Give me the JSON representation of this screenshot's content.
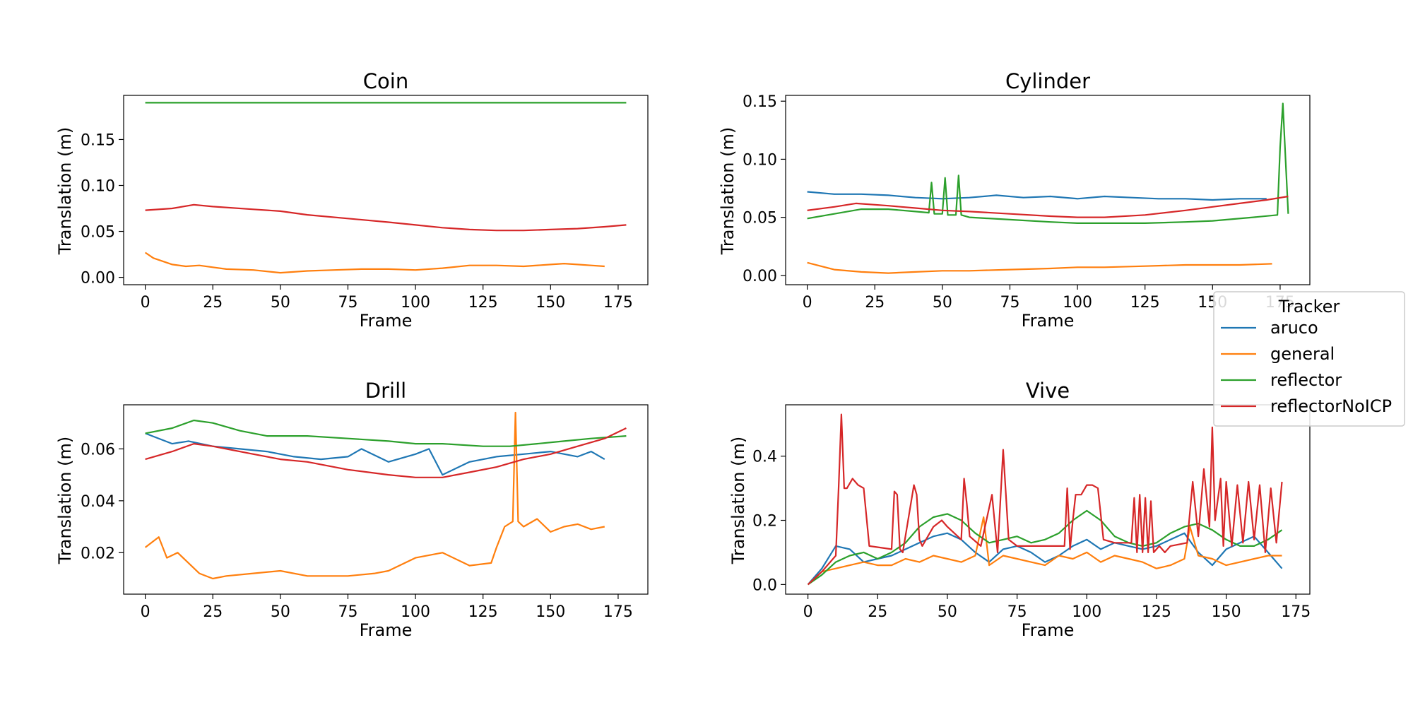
{
  "legend": {
    "title": "Tracker",
    "position": "right, between rows"
  },
  "chart_data": [
    {
      "type": "line",
      "title": "Coin",
      "xlabel": "Frame",
      "ylabel": "Translation (m)",
      "xlim": [
        -8,
        186
      ],
      "ylim": [
        -0.008,
        0.198
      ],
      "xticks": [
        0,
        25,
        50,
        75,
        100,
        125,
        150,
        175
      ],
      "yticks": [
        0.0,
        0.05,
        0.1,
        0.15
      ],
      "ytick_labels": [
        "0.00",
        "0.05",
        "0.10",
        "0.15"
      ],
      "grid": false,
      "series": [
        {
          "name": "aruco",
          "color": "#1f77b4",
          "x": [],
          "y": []
        },
        {
          "name": "general",
          "color": "#ff7f0e",
          "x": [
            0,
            3,
            6,
            10,
            15,
            20,
            25,
            30,
            40,
            50,
            60,
            70,
            80,
            90,
            100,
            110,
            120,
            130,
            140,
            150,
            155,
            160,
            165,
            170
          ],
          "y": [
            0.027,
            0.021,
            0.018,
            0.014,
            0.012,
            0.013,
            0.011,
            0.009,
            0.008,
            0.005,
            0.007,
            0.008,
            0.009,
            0.009,
            0.008,
            0.01,
            0.013,
            0.013,
            0.012,
            0.014,
            0.015,
            0.014,
            0.013,
            0.012
          ]
        },
        {
          "name": "reflector",
          "color": "#2ca02c",
          "x": [
            0,
            178
          ],
          "y": [
            0.19,
            0.19
          ]
        },
        {
          "name": "reflectorNoICP",
          "color": "#d62728",
          "x": [
            0,
            10,
            18,
            25,
            40,
            50,
            60,
            75,
            90,
            100,
            110,
            120,
            130,
            140,
            150,
            160,
            170,
            178
          ],
          "y": [
            0.073,
            0.075,
            0.079,
            0.077,
            0.074,
            0.072,
            0.068,
            0.064,
            0.06,
            0.057,
            0.054,
            0.052,
            0.051,
            0.051,
            0.052,
            0.053,
            0.055,
            0.057
          ]
        }
      ]
    },
    {
      "type": "line",
      "title": "Cylinder",
      "xlabel": "Frame",
      "ylabel": "Translation (m)",
      "xlim": [
        -8,
        186
      ],
      "ylim": [
        -0.008,
        0.155
      ],
      "xticks": [
        0,
        25,
        50,
        75,
        100,
        125,
        150,
        175
      ],
      "yticks": [
        0.0,
        0.05,
        0.1,
        0.15
      ],
      "ytick_labels": [
        "0.00",
        "0.05",
        "0.10",
        "0.15"
      ],
      "grid": false,
      "series": [
        {
          "name": "aruco",
          "color": "#1f77b4",
          "x": [
            0,
            10,
            20,
            30,
            40,
            50,
            60,
            70,
            80,
            90,
            100,
            110,
            120,
            130,
            140,
            150,
            160,
            170
          ],
          "y": [
            0.072,
            0.07,
            0.07,
            0.069,
            0.067,
            0.066,
            0.067,
            0.069,
            0.067,
            0.068,
            0.066,
            0.068,
            0.067,
            0.066,
            0.066,
            0.065,
            0.066,
            0.066
          ]
        },
        {
          "name": "general",
          "color": "#ff7f0e",
          "x": [
            0,
            5,
            10,
            20,
            30,
            40,
            50,
            60,
            75,
            90,
            100,
            110,
            125,
            140,
            150,
            160,
            172
          ],
          "y": [
            0.011,
            0.008,
            0.005,
            0.003,
            0.002,
            0.003,
            0.004,
            0.004,
            0.005,
            0.006,
            0.007,
            0.007,
            0.008,
            0.009,
            0.009,
            0.009,
            0.01
          ]
        },
        {
          "name": "reflector",
          "color": "#2ca02c",
          "x": [
            0,
            10,
            20,
            30,
            40,
            45,
            46,
            47,
            50,
            51,
            52,
            55,
            56,
            57,
            60,
            75,
            90,
            100,
            110,
            125,
            140,
            150,
            165,
            174,
            175,
            176,
            177,
            178
          ],
          "y": [
            0.049,
            0.053,
            0.057,
            0.057,
            0.055,
            0.054,
            0.08,
            0.053,
            0.053,
            0.084,
            0.052,
            0.052,
            0.086,
            0.052,
            0.05,
            0.048,
            0.046,
            0.045,
            0.045,
            0.045,
            0.046,
            0.047,
            0.05,
            0.052,
            0.11,
            0.148,
            0.1,
            0.053
          ]
        },
        {
          "name": "reflectorNoICP",
          "color": "#d62728",
          "x": [
            0,
            10,
            18,
            30,
            40,
            50,
            60,
            75,
            90,
            100,
            110,
            125,
            140,
            150,
            160,
            170,
            178
          ],
          "y": [
            0.056,
            0.059,
            0.062,
            0.06,
            0.058,
            0.056,
            0.055,
            0.053,
            0.051,
            0.05,
            0.05,
            0.052,
            0.056,
            0.059,
            0.062,
            0.065,
            0.068
          ]
        }
      ]
    },
    {
      "type": "line",
      "title": "Drill",
      "xlabel": "Frame",
      "ylabel": "Translation (m)",
      "xlim": [
        -8,
        186
      ],
      "ylim": [
        0.004,
        0.077
      ],
      "xticks": [
        0,
        25,
        50,
        75,
        100,
        125,
        150,
        175
      ],
      "yticks": [
        0.02,
        0.04,
        0.06
      ],
      "ytick_labels": [
        "0.02",
        "0.04",
        "0.06"
      ],
      "grid": false,
      "series": [
        {
          "name": "aruco",
          "color": "#1f77b4",
          "x": [
            0,
            10,
            16,
            25,
            35,
            45,
            55,
            65,
            75,
            80,
            90,
            100,
            105,
            110,
            120,
            130,
            140,
            150,
            160,
            165,
            170
          ],
          "y": [
            0.066,
            0.062,
            0.063,
            0.061,
            0.06,
            0.059,
            0.057,
            0.056,
            0.057,
            0.06,
            0.055,
            0.058,
            0.06,
            0.05,
            0.055,
            0.057,
            0.058,
            0.059,
            0.057,
            0.059,
            0.056
          ]
        },
        {
          "name": "general",
          "color": "#ff7f0e",
          "x": [
            0,
            5,
            8,
            12,
            16,
            20,
            25,
            30,
            40,
            50,
            60,
            75,
            85,
            90,
            100,
            110,
            120,
            128,
            130,
            133,
            136,
            137,
            138,
            140,
            145,
            150,
            155,
            160,
            165,
            170
          ],
          "y": [
            0.022,
            0.026,
            0.018,
            0.02,
            0.016,
            0.012,
            0.01,
            0.011,
            0.012,
            0.013,
            0.011,
            0.011,
            0.012,
            0.013,
            0.018,
            0.02,
            0.015,
            0.016,
            0.022,
            0.03,
            0.032,
            0.074,
            0.032,
            0.03,
            0.033,
            0.028,
            0.03,
            0.031,
            0.029,
            0.03
          ]
        },
        {
          "name": "reflector",
          "color": "#2ca02c",
          "x": [
            0,
            10,
            18,
            25,
            35,
            45,
            60,
            75,
            90,
            100,
            110,
            125,
            135,
            145,
            155,
            165,
            178
          ],
          "y": [
            0.066,
            0.068,
            0.071,
            0.07,
            0.067,
            0.065,
            0.065,
            0.064,
            0.063,
            0.062,
            0.062,
            0.061,
            0.061,
            0.062,
            0.063,
            0.064,
            0.065
          ]
        },
        {
          "name": "reflectorNoICP",
          "color": "#d62728",
          "x": [
            0,
            10,
            18,
            25,
            40,
            50,
            60,
            75,
            90,
            100,
            110,
            120,
            130,
            140,
            150,
            160,
            170,
            178
          ],
          "y": [
            0.056,
            0.059,
            0.062,
            0.061,
            0.058,
            0.056,
            0.055,
            0.052,
            0.05,
            0.049,
            0.049,
            0.051,
            0.053,
            0.056,
            0.058,
            0.061,
            0.064,
            0.068
          ]
        }
      ]
    },
    {
      "type": "line",
      "title": "Vive",
      "xlabel": "Frame",
      "ylabel": "Translation (m)",
      "xlim": [
        -8,
        180
      ],
      "ylim": [
        -0.03,
        0.56
      ],
      "xticks": [
        0,
        25,
        50,
        75,
        100,
        125,
        150,
        175
      ],
      "yticks": [
        0.0,
        0.2,
        0.4
      ],
      "ytick_labels": [
        "0.0",
        "0.2",
        "0.4"
      ],
      "grid": false,
      "series": [
        {
          "name": "aruco",
          "color": "#1f77b4",
          "x": [
            0,
            5,
            10,
            15,
            20,
            25,
            30,
            35,
            40,
            45,
            50,
            55,
            60,
            65,
            70,
            75,
            80,
            85,
            90,
            95,
            100,
            105,
            110,
            115,
            120,
            125,
            130,
            135,
            140,
            145,
            150,
            155,
            160,
            165,
            170
          ],
          "y": [
            0.0,
            0.05,
            0.12,
            0.11,
            0.07,
            0.08,
            0.09,
            0.11,
            0.13,
            0.15,
            0.16,
            0.14,
            0.1,
            0.07,
            0.11,
            0.12,
            0.1,
            0.07,
            0.09,
            0.12,
            0.14,
            0.11,
            0.13,
            0.12,
            0.11,
            0.12,
            0.14,
            0.16,
            0.1,
            0.06,
            0.11,
            0.13,
            0.15,
            0.1,
            0.05
          ]
        },
        {
          "name": "general",
          "color": "#ff7f0e",
          "x": [
            0,
            5,
            10,
            15,
            20,
            25,
            30,
            35,
            40,
            45,
            50,
            55,
            60,
            63,
            65,
            70,
            75,
            80,
            85,
            90,
            95,
            100,
            105,
            110,
            115,
            120,
            125,
            130,
            135,
            137,
            140,
            145,
            150,
            155,
            160,
            165,
            170
          ],
          "y": [
            0.0,
            0.04,
            0.05,
            0.06,
            0.07,
            0.06,
            0.06,
            0.08,
            0.07,
            0.09,
            0.08,
            0.07,
            0.09,
            0.21,
            0.06,
            0.09,
            0.08,
            0.07,
            0.06,
            0.09,
            0.08,
            0.1,
            0.07,
            0.09,
            0.08,
            0.07,
            0.05,
            0.06,
            0.08,
            0.18,
            0.09,
            0.08,
            0.06,
            0.07,
            0.08,
            0.09,
            0.09
          ]
        },
        {
          "name": "reflector",
          "color": "#2ca02c",
          "x": [
            0,
            5,
            10,
            15,
            20,
            25,
            30,
            35,
            40,
            45,
            50,
            55,
            60,
            65,
            70,
            75,
            80,
            85,
            90,
            95,
            100,
            105,
            110,
            115,
            120,
            125,
            130,
            135,
            140,
            145,
            150,
            155,
            160,
            165,
            170
          ],
          "y": [
            0.0,
            0.03,
            0.07,
            0.09,
            0.1,
            0.08,
            0.1,
            0.13,
            0.18,
            0.21,
            0.22,
            0.2,
            0.16,
            0.13,
            0.14,
            0.15,
            0.13,
            0.14,
            0.16,
            0.2,
            0.23,
            0.2,
            0.15,
            0.13,
            0.12,
            0.13,
            0.16,
            0.18,
            0.19,
            0.17,
            0.14,
            0.12,
            0.12,
            0.14,
            0.17
          ]
        },
        {
          "name": "reflectorNoICP",
          "color": "#d62728",
          "x": [
            0,
            5,
            10,
            11,
            12,
            13,
            14,
            16,
            18,
            20,
            22,
            30,
            31,
            32,
            33,
            34,
            38,
            39,
            40,
            41,
            45,
            48,
            50,
            55,
            56,
            57,
            58,
            62,
            66,
            68,
            70,
            72,
            75,
            85,
            92,
            93,
            94,
            95,
            96,
            98,
            100,
            102,
            104,
            106,
            110,
            116,
            117,
            118,
            119,
            120,
            121,
            122,
            123,
            124,
            126,
            128,
            130,
            136,
            138,
            140,
            142,
            144,
            145,
            146,
            148,
            149,
            150,
            152,
            154,
            156,
            158,
            160,
            162,
            164,
            166,
            168,
            170
          ],
          "y": [
            0.0,
            0.04,
            0.09,
            0.3,
            0.53,
            0.3,
            0.3,
            0.33,
            0.31,
            0.3,
            0.12,
            0.11,
            0.29,
            0.28,
            0.11,
            0.1,
            0.31,
            0.28,
            0.14,
            0.12,
            0.18,
            0.2,
            0.18,
            0.14,
            0.33,
            0.25,
            0.15,
            0.12,
            0.28,
            0.1,
            0.42,
            0.14,
            0.12,
            0.12,
            0.12,
            0.3,
            0.11,
            0.2,
            0.28,
            0.28,
            0.31,
            0.31,
            0.3,
            0.14,
            0.13,
            0.13,
            0.27,
            0.1,
            0.28,
            0.1,
            0.27,
            0.1,
            0.26,
            0.1,
            0.12,
            0.1,
            0.12,
            0.13,
            0.32,
            0.15,
            0.36,
            0.18,
            0.49,
            0.2,
            0.33,
            0.12,
            0.32,
            0.12,
            0.31,
            0.13,
            0.32,
            0.14,
            0.31,
            0.1,
            0.3,
            0.13,
            0.32
          ]
        }
      ]
    }
  ]
}
